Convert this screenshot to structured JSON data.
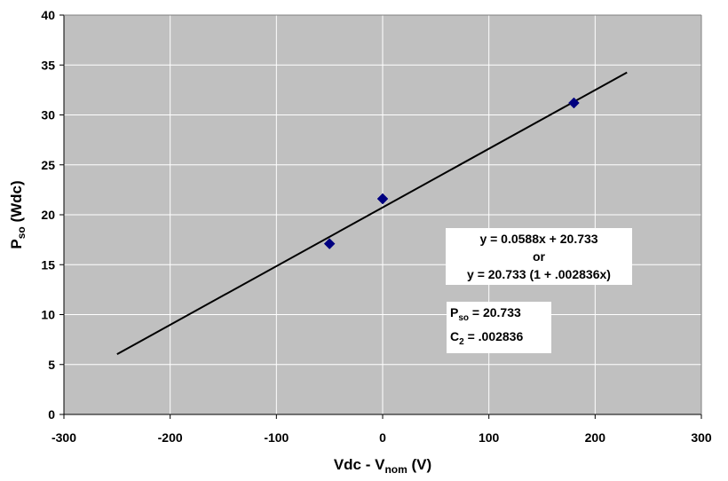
{
  "chart_data": {
    "type": "scatter",
    "xlabel": {
      "main": "Vdc - V",
      "sub": "nom",
      "tail": " (V)"
    },
    "ylabel": {
      "main": "P",
      "sub": "so",
      "tail": " (Wdc)"
    },
    "xlim": [
      -300,
      300
    ],
    "ylim": [
      0,
      40
    ],
    "xticks": [
      "-300",
      "-200",
      "-100",
      "0",
      "100",
      "200",
      "300"
    ],
    "yticks": [
      "0",
      "5",
      "10",
      "15",
      "20",
      "25",
      "30",
      "35",
      "40"
    ],
    "grid": true,
    "plot_background": "#c0c0c0",
    "series": [
      {
        "marker": "diamond",
        "color": "#000080",
        "points": [
          {
            "x": -50,
            "y": 17.1
          },
          {
            "x": 0,
            "y": 21.6
          },
          {
            "x": 180,
            "y": 31.2
          }
        ]
      }
    ],
    "trendline": {
      "type": "linear",
      "slope": 0.0588,
      "intercept": 20.733,
      "x_range": [
        -250,
        230
      ],
      "color": "#000000"
    },
    "annotations": {
      "equation_line1": "y = 0.0588x + 20.733",
      "equation_line2": "or",
      "equation_line3": "y = 20.733 (1 + .002836x)",
      "pso_main": "P",
      "pso_sub": "so",
      "pso_tail": " = 20.733",
      "c2_main": "C",
      "c2_sub": "2",
      "c2_tail": " = .002836"
    }
  }
}
